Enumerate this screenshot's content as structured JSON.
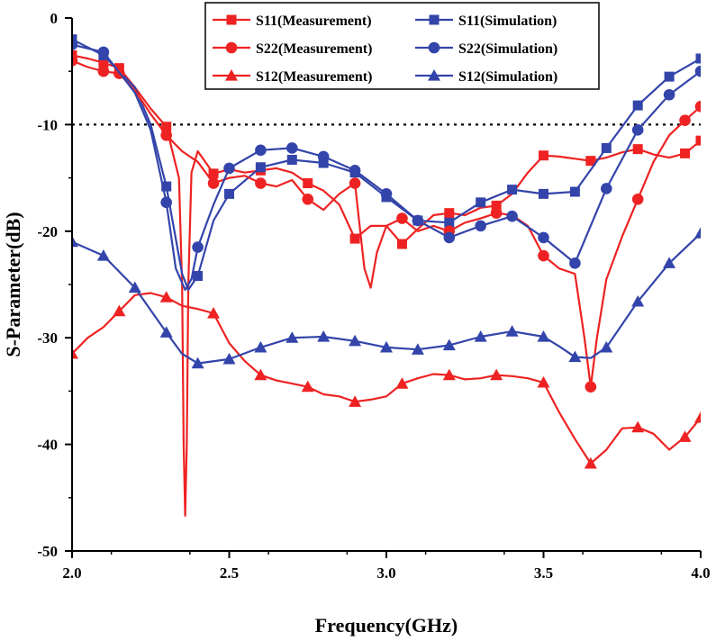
{
  "chart_data": {
    "type": "line",
    "xlabel": "Frequency(GHz)",
    "ylabel": "S-Parameter(dB)",
    "xlim": [
      2.0,
      4.0
    ],
    "ylim": [
      -50,
      0
    ],
    "xticks": [
      "2.0",
      "2.5",
      "3.0",
      "3.5",
      "4.0"
    ],
    "yticks": [
      "0",
      "-10",
      "-20",
      "-30",
      "-40",
      "-50"
    ],
    "reference_line": -10,
    "grid": false,
    "legend_position": "top-right",
    "colors": {
      "measurement": "#ee2222",
      "simulation": "#3344aa",
      "reference": "#000000"
    },
    "series": [
      {
        "name": "S11(Measurement)",
        "color": "#ee2222",
        "marker": "square",
        "x": [
          2.0,
          2.05,
          2.1,
          2.15,
          2.2,
          2.25,
          2.3,
          2.35,
          2.4,
          2.45,
          2.5,
          2.55,
          2.6,
          2.65,
          2.7,
          2.75,
          2.8,
          2.85,
          2.9,
          2.95,
          3.0,
          3.05,
          3.1,
          3.15,
          3.2,
          3.25,
          3.3,
          3.35,
          3.4,
          3.45,
          3.5,
          3.55,
          3.6,
          3.65,
          3.7,
          3.75,
          3.8,
          3.85,
          3.9,
          3.95,
          4.0
        ],
        "y": [
          -3.5,
          -3.8,
          -4.2,
          -4.7,
          -6.5,
          -8.5,
          -10.2,
          -11.5,
          -12.5,
          -14.6,
          -14.2,
          -14.5,
          -14.3,
          -14.1,
          -14.5,
          -15.5,
          -16.2,
          -17.5,
          -20.7,
          -19.5,
          -19.5,
          -21.2,
          -19.8,
          -18.5,
          -18.3,
          -18.5,
          -17.8,
          -17.6,
          -16.5,
          -14.5,
          -12.9,
          -13.0,
          -13.2,
          -13.4,
          -13.1,
          -12.6,
          -12.3,
          -12.8,
          -13.1,
          -12.7,
          -11.5
        ],
        "marker_x": [
          2.0,
          2.1,
          2.15,
          2.3,
          2.45,
          2.6,
          2.75,
          2.9,
          3.05,
          3.2,
          3.35,
          3.5,
          3.65,
          3.8,
          3.95,
          4.0
        ]
      },
      {
        "name": "S11(Simulation)",
        "color": "#3344aa",
        "marker": "square",
        "x": [
          2.0,
          2.1,
          2.2,
          2.25,
          2.3,
          2.35,
          2.37,
          2.4,
          2.45,
          2.5,
          2.6,
          2.7,
          2.8,
          2.9,
          3.0,
          3.1,
          3.2,
          3.3,
          3.4,
          3.5,
          3.6,
          3.7,
          3.8,
          3.9,
          4.0
        ],
        "y": [
          -2.0,
          -3.5,
          -6.5,
          -10.0,
          -15.8,
          -24.0,
          -25.5,
          -24.2,
          -19.0,
          -16.5,
          -14.0,
          -13.3,
          -13.6,
          -14.5,
          -16.8,
          -19.0,
          -19.2,
          -17.3,
          -16.1,
          -16.5,
          -16.3,
          -12.2,
          -8.2,
          -5.5,
          -3.8
        ],
        "marker_x": [
          2.0,
          2.1,
          2.3,
          2.4,
          2.5,
          2.6,
          2.7,
          2.8,
          2.9,
          3.0,
          3.1,
          3.2,
          3.3,
          3.4,
          3.5,
          3.6,
          3.7,
          3.8,
          3.9,
          4.0
        ]
      },
      {
        "name": "S22(Measurement)",
        "color": "#ee2222",
        "marker": "circle",
        "x": [
          2.0,
          2.05,
          2.1,
          2.15,
          2.2,
          2.25,
          2.3,
          2.35,
          2.4,
          2.45,
          2.5,
          2.55,
          2.6,
          2.65,
          2.7,
          2.75,
          2.8,
          2.85,
          2.9,
          2.93,
          2.95,
          2.97,
          3.0,
          3.05,
          3.1,
          3.15,
          3.2,
          3.25,
          3.3,
          3.35,
          3.4,
          3.45,
          3.5,
          3.55,
          3.6,
          3.63,
          3.65,
          3.67,
          3.7,
          3.75,
          3.8,
          3.85,
          3.9,
          3.95,
          4.0
        ],
        "y": [
          -4.0,
          -4.6,
          -5.0,
          -5.2,
          -6.8,
          -9.0,
          -11.0,
          -12.5,
          -13.5,
          -15.5,
          -15.0,
          -14.8,
          -15.5,
          -15.8,
          -15.2,
          -17.0,
          -18.0,
          -16.5,
          -15.5,
          -23.5,
          -25.3,
          -22.0,
          -19.5,
          -18.8,
          -20.0,
          -19.5,
          -20.0,
          -19.2,
          -18.8,
          -18.3,
          -18.5,
          -19.5,
          -22.3,
          -23.5,
          -24.0,
          -30.0,
          -34.6,
          -30.0,
          -24.5,
          -20.5,
          -17.0,
          -13.5,
          -11.0,
          -9.6,
          -8.3
        ],
        "marker_x": [
          2.0,
          2.1,
          2.15,
          2.3,
          2.45,
          2.6,
          2.75,
          2.9,
          3.05,
          3.2,
          3.35,
          3.5,
          3.65,
          3.8,
          3.95,
          4.0
        ]
      },
      {
        "name": "S22(Simulation)",
        "color": "#3344aa",
        "marker": "circle",
        "x": [
          2.0,
          2.1,
          2.2,
          2.25,
          2.3,
          2.33,
          2.36,
          2.38,
          2.4,
          2.45,
          2.5,
          2.6,
          2.7,
          2.8,
          2.9,
          3.0,
          3.1,
          3.2,
          3.3,
          3.4,
          3.5,
          3.6,
          3.7,
          3.8,
          3.9,
          4.0
        ],
        "y": [
          -2.5,
          -3.2,
          -7.0,
          -10.5,
          -17.3,
          -23.5,
          -25.5,
          -24.5,
          -21.5,
          -17.5,
          -14.1,
          -12.4,
          -12.2,
          -13.0,
          -14.3,
          -16.5,
          -19.0,
          -20.6,
          -19.5,
          -18.6,
          -20.6,
          -23.0,
          -16.0,
          -10.5,
          -7.2,
          -5.0
        ],
        "marker_x": [
          2.0,
          2.1,
          2.3,
          2.4,
          2.5,
          2.6,
          2.7,
          2.8,
          2.9,
          3.0,
          3.1,
          3.2,
          3.3,
          3.4,
          3.5,
          3.6,
          3.7,
          3.8,
          3.9,
          4.0
        ]
      },
      {
        "name": "S12(Measurement)",
        "color": "#ee2222",
        "marker": "triangle",
        "x": [
          2.0,
          2.05,
          2.1,
          2.15,
          2.2,
          2.25,
          2.3,
          2.35,
          2.4,
          2.45,
          2.5,
          2.55,
          2.6,
          2.65,
          2.7,
          2.75,
          2.8,
          2.85,
          2.9,
          2.95,
          3.0,
          3.05,
          3.1,
          3.15,
          3.2,
          3.25,
          3.3,
          3.35,
          3.4,
          3.45,
          3.5,
          3.55,
          3.6,
          3.65,
          3.7,
          3.75,
          3.8,
          3.85,
          3.9,
          3.95,
          4.0
        ],
        "y": [
          -31.5,
          -30.0,
          -29.0,
          -27.5,
          -26.0,
          -25.8,
          -26.2,
          -27.0,
          -27.3,
          -27.7,
          -30.5,
          -32.2,
          -33.5,
          -34.0,
          -34.3,
          -34.6,
          -35.3,
          -35.5,
          -36.0,
          -35.8,
          -35.5,
          -34.3,
          -33.8,
          -33.4,
          -33.5,
          -33.9,
          -33.8,
          -33.5,
          -33.6,
          -33.8,
          -34.2,
          -37.0,
          -39.5,
          -41.8,
          -40.5,
          -38.5,
          -38.4,
          -39.0,
          -40.5,
          -39.3,
          -37.5
        ],
        "marker_x": [
          2.0,
          2.15,
          2.3,
          2.45,
          2.6,
          2.75,
          2.9,
          3.05,
          3.2,
          3.35,
          3.5,
          3.65,
          3.8,
          3.95,
          4.0
        ]
      },
      {
        "name": "S12(Simulation)",
        "color": "#3344aa",
        "marker": "triangle",
        "x": [
          2.0,
          2.1,
          2.2,
          2.3,
          2.35,
          2.4,
          2.5,
          2.6,
          2.7,
          2.8,
          2.9,
          3.0,
          3.1,
          3.2,
          3.3,
          3.4,
          3.5,
          3.55,
          3.6,
          3.65,
          3.7,
          3.8,
          3.9,
          4.0
        ],
        "y": [
          -21.0,
          -22.3,
          -25.3,
          -29.5,
          -31.5,
          -32.4,
          -32.0,
          -30.9,
          -30.0,
          -29.9,
          -30.3,
          -30.9,
          -31.1,
          -30.7,
          -29.9,
          -29.4,
          -29.9,
          -30.8,
          -31.8,
          -31.9,
          -30.9,
          -26.6,
          -23.0,
          -20.2
        ],
        "marker_x": [
          2.0,
          2.1,
          2.2,
          2.3,
          2.4,
          2.5,
          2.6,
          2.7,
          2.8,
          2.9,
          3.0,
          3.1,
          3.2,
          3.3,
          3.4,
          3.5,
          3.6,
          3.7,
          3.8,
          3.9,
          4.0
        ]
      }
    ],
    "sharp_dip": {
      "series": "S11(Measurement)",
      "x": [
        2.34,
        2.35,
        2.355,
        2.36,
        2.365,
        2.37,
        2.38
      ],
      "y": [
        -15.0,
        -25.0,
        -40.0,
        -46.7,
        -40.0,
        -25.0,
        -14.5
      ]
    }
  }
}
